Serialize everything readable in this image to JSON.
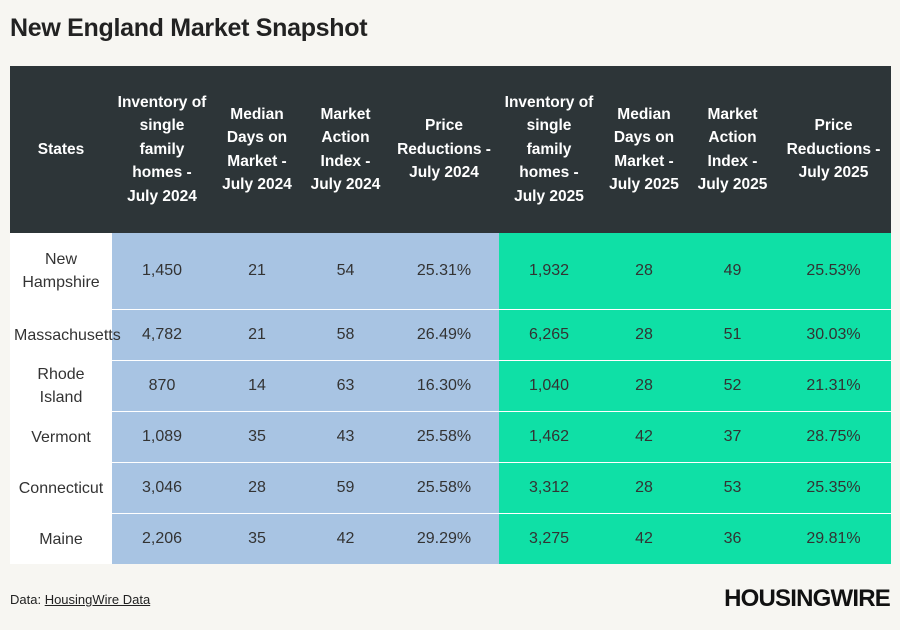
{
  "title": "New England Market Snapshot",
  "chart_data": {
    "type": "table",
    "columns": [
      "States",
      "Inventory of single family homes - July 2024",
      "Median Days on Market - July 2024",
      "Market Action Index - July 2024",
      "Price Reductions - July 2024",
      "Inventory of single family homes - July 2025",
      "Median Days on Market - July 2025",
      "Market Action Index - July 2025",
      "Price Reductions - July 2025"
    ],
    "rows": [
      [
        "New Hampshire",
        "1,450",
        "21",
        "54",
        "25.31%",
        "1,932",
        "28",
        "49",
        "25.53%"
      ],
      [
        "Massachusetts",
        "4,782",
        "21",
        "58",
        "26.49%",
        "6,265",
        "28",
        "51",
        "30.03%"
      ],
      [
        "Rhode Island",
        "870",
        "14",
        "63",
        "16.30%",
        "1,040",
        "28",
        "52",
        "21.31%"
      ],
      [
        "Vermont",
        "1,089",
        "35",
        "43",
        "25.58%",
        "1,462",
        "42",
        "37",
        "28.75%"
      ],
      [
        "Connecticut",
        "3,046",
        "28",
        "59",
        "25.58%",
        "3,312",
        "28",
        "53",
        "25.35%"
      ],
      [
        "Maine",
        "2,206",
        "35",
        "42",
        "29.29%",
        "3,275",
        "42",
        "36",
        "29.81%"
      ]
    ]
  },
  "colors": {
    "header_bg": "#2d3538",
    "year_2024_bg": "#a8c4e3",
    "year_2025_bg": "#0fe0a6",
    "page_bg": "#f7f6f2"
  },
  "footer": {
    "source_prefix": "Data: ",
    "source_link": "HousingWire Data",
    "logo": "HOUSINGWIRE"
  }
}
